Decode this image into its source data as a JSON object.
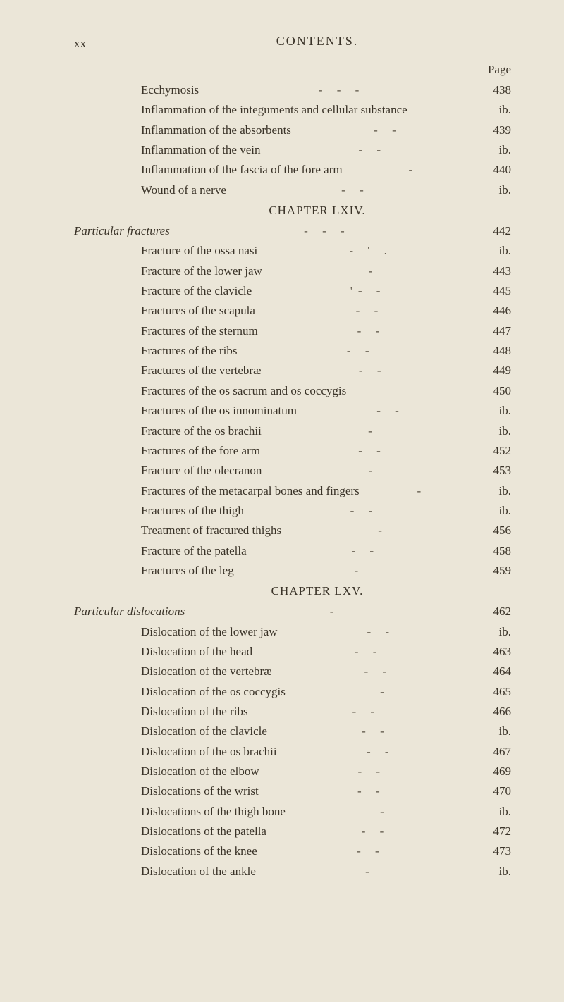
{
  "page_marker": "xx",
  "header_title": "CONTENTS.",
  "page_label": "Page",
  "colors": {
    "background": "#ebe6d8",
    "text": "#3a3328",
    "dash": "#5a5244"
  },
  "typography": {
    "body_fontsize": 17,
    "header_fontsize": 18,
    "font_family": "Georgia, Times New Roman, serif",
    "line_height": 1.55
  },
  "entries": [
    {
      "text": "Ecchymosis",
      "page": "438",
      "indent": 1,
      "italic": false,
      "dashes": "-            -           -"
    },
    {
      "text": "Inflammation of the integuments and cellular substance",
      "page": "ib.",
      "indent": 1,
      "italic": false,
      "dashes": ""
    },
    {
      "text": "Inflammation of the absorbents",
      "page": "439",
      "indent": 1,
      "italic": false,
      "dashes": "-           -"
    },
    {
      "text": "Inflammation of the vein",
      "page": "ib.",
      "indent": 1,
      "italic": false,
      "dashes": "-           -"
    },
    {
      "text": "Inflammation of the fascia of the fore arm",
      "page": "440",
      "indent": 1,
      "italic": false,
      "dashes": "-"
    },
    {
      "text": "Wound of a nerve",
      "page": "ib.",
      "indent": 1,
      "italic": false,
      "dashes": "-           -"
    },
    {
      "type": "chapter",
      "text": "CHAPTER LXIV."
    },
    {
      "text": "Particular fractures",
      "page": "442",
      "indent": 0,
      "italic": true,
      "dashes": "-            -           -"
    },
    {
      "text": "Fracture of the ossa nasi",
      "page": "ib.",
      "indent": 1,
      "italic": false,
      "dashes": "-        '  ."
    },
    {
      "text": "Fracture of the lower jaw",
      "page": "443",
      "indent": 1,
      "italic": false,
      "dashes": "-"
    },
    {
      "text": "Fracture of the clavicle",
      "page": "445",
      "indent": 1,
      "italic": false,
      "dashes": "'-           -"
    },
    {
      "text": "Fractures of the scapula",
      "page": "446",
      "indent": 1,
      "italic": false,
      "dashes": "-            -"
    },
    {
      "text": "Fractures of the sternum",
      "page": "447",
      "indent": 1,
      "italic": false,
      "dashes": "-           -"
    },
    {
      "text": "Fractures of the ribs",
      "page": "448",
      "indent": 1,
      "italic": false,
      "dashes": "-            -"
    },
    {
      "text": "Fractures of the vertebræ",
      "page": "449",
      "indent": 1,
      "italic": false,
      "dashes": "-           -"
    },
    {
      "text": "Fractures of the os sacrum and os coccygis",
      "page": "450",
      "indent": 1,
      "italic": false,
      "dashes": ""
    },
    {
      "text": "Fractures of the os innominatum",
      "page": "ib.",
      "indent": 1,
      "italic": false,
      "dashes": "-           -"
    },
    {
      "text": "Fracture of the os brachii",
      "page": "ib.",
      "indent": 1,
      "italic": false,
      "dashes": "-"
    },
    {
      "text": "Fractures of the fore arm",
      "page": "452",
      "indent": 1,
      "italic": false,
      "dashes": "-           -"
    },
    {
      "text": "Fracture of the olecranon",
      "page": "453",
      "indent": 1,
      "italic": false,
      "dashes": "-"
    },
    {
      "text": "Fractures of the metacarpal bones and fingers",
      "page": "ib.",
      "indent": 1,
      "italic": false,
      "dashes": "-"
    },
    {
      "text": "Fractures of the thigh",
      "page": "ib.",
      "indent": 1,
      "italic": false,
      "dashes": "-           -"
    },
    {
      "text": "Treatment of fractured thighs",
      "page": "456",
      "indent": 1,
      "italic": false,
      "dashes": "-"
    },
    {
      "text": "Fracture of the patella",
      "page": "458",
      "indent": 1,
      "italic": false,
      "dashes": "-           -"
    },
    {
      "text": "Fractures of the leg",
      "page": "459",
      "indent": 1,
      "italic": false,
      "dashes": "-"
    },
    {
      "type": "chapter",
      "text": "CHAPTER LXV."
    },
    {
      "text": "Particular dislocations",
      "page": "462",
      "indent": 0,
      "italic": true,
      "dashes": "-"
    },
    {
      "text": "Dislocation of the lower jaw",
      "page": "ib.",
      "indent": 1,
      "italic": false,
      "dashes": "-        -"
    },
    {
      "text": "Dislocation of the head",
      "page": "463",
      "indent": 1,
      "italic": false,
      "dashes": "-           -"
    },
    {
      "text": "Dislocation of the vertebræ",
      "page": "464",
      "indent": 1,
      "italic": false,
      "dashes": "-           -"
    },
    {
      "text": "Dislocation of the os coccygis",
      "page": "465",
      "indent": 1,
      "italic": false,
      "dashes": "-"
    },
    {
      "text": "Dislocation of the ribs",
      "page": "466",
      "indent": 1,
      "italic": false,
      "dashes": "-            -"
    },
    {
      "text": "Dislocation of the clavicle",
      "page": "ib.",
      "indent": 1,
      "italic": false,
      "dashes": "-            -"
    },
    {
      "text": "Dislocation of the os brachii",
      "page": "467",
      "indent": 1,
      "italic": false,
      "dashes": "-           -"
    },
    {
      "text": "Dislocation of the elbow",
      "page": "469",
      "indent": 1,
      "italic": false,
      "dashes": "-            -"
    },
    {
      "text": "Dislocations of the wrist",
      "page": "470",
      "indent": 1,
      "italic": false,
      "dashes": "-           -"
    },
    {
      "text": "Dislocations of the thigh bone",
      "page": "ib.",
      "indent": 1,
      "italic": false,
      "dashes": "-"
    },
    {
      "text": "Dislocations of the patella",
      "page": "472",
      "indent": 1,
      "italic": false,
      "dashes": "-           -"
    },
    {
      "text": "Dislocations of the knee",
      "page": "473",
      "indent": 1,
      "italic": false,
      "dashes": "-            -"
    },
    {
      "text": "Dislocation of the ankle",
      "page": "ib.",
      "indent": 1,
      "italic": false,
      "dashes": "-"
    }
  ]
}
